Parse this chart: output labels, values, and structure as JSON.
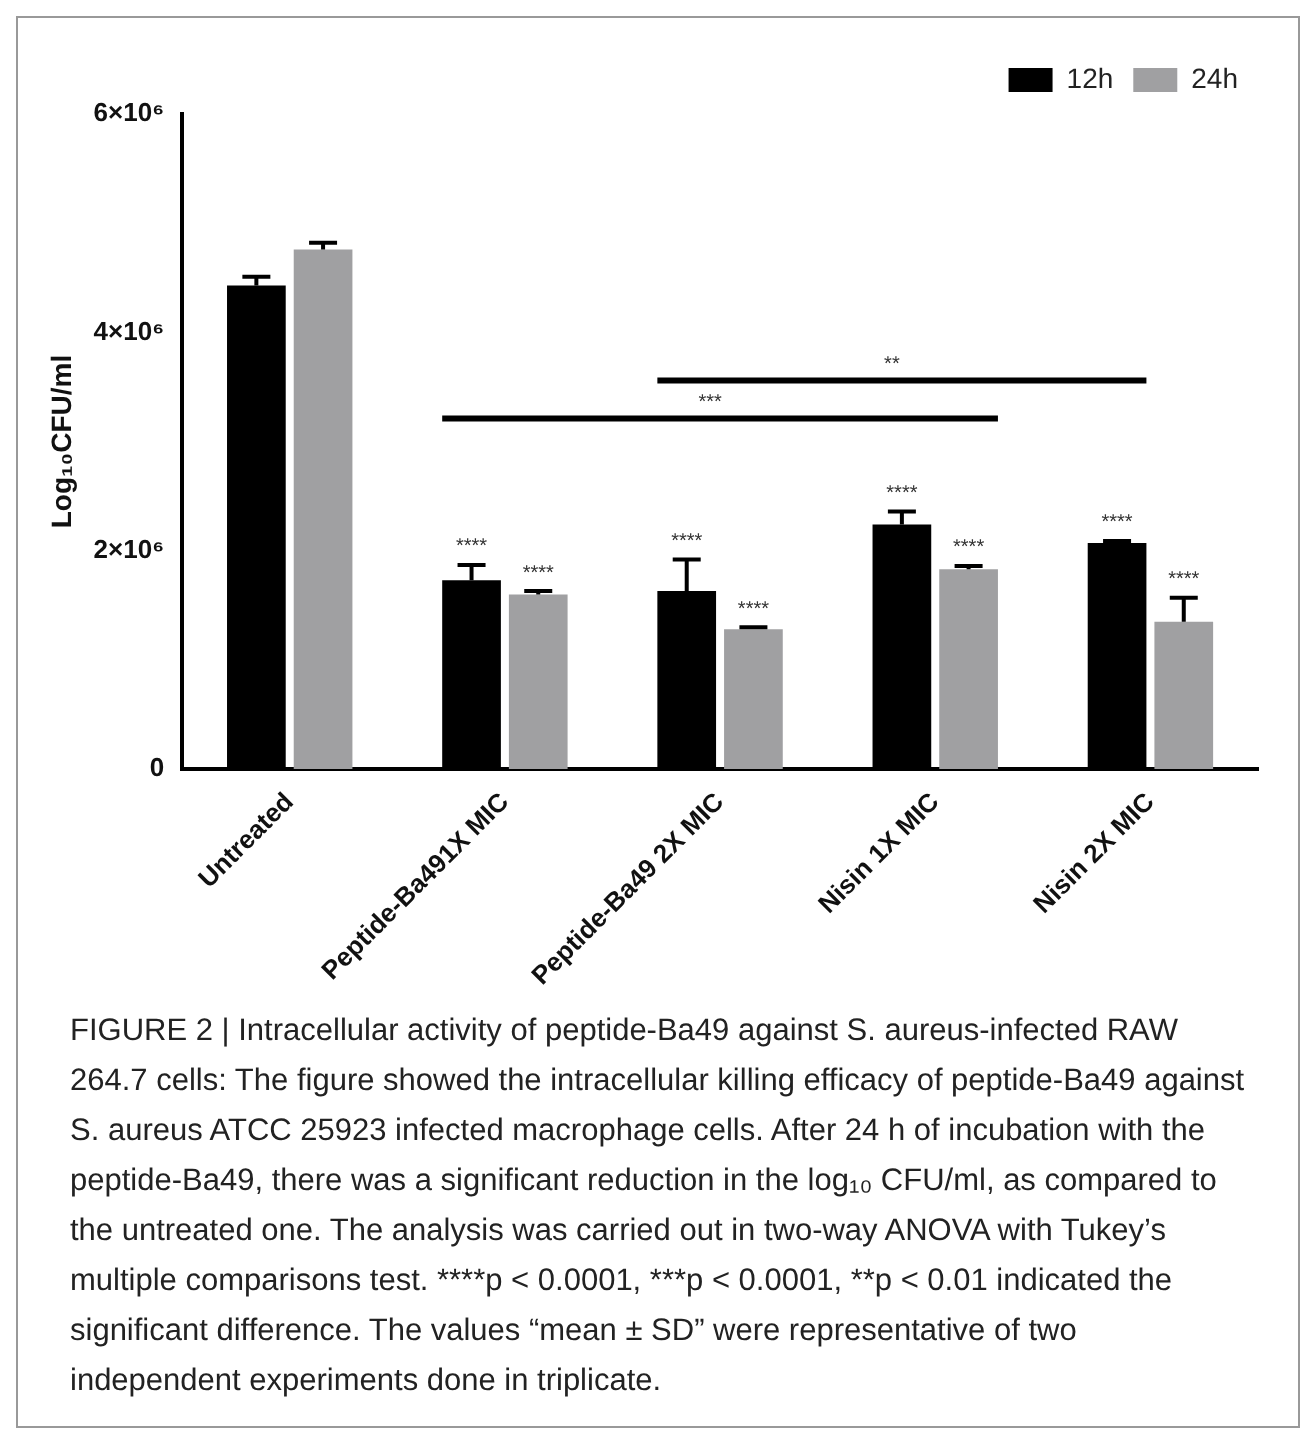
{
  "chart_data": {
    "type": "bar",
    "ylabel": "Log₁₀CFU/ml",
    "categories": [
      "Untreated",
      "Peptide-Ba491X MIC",
      "Peptide-Ba49 2X MIC",
      "Nisin 1X MIC",
      "Nisin 2X MIC"
    ],
    "series": [
      {
        "name": "12h",
        "color": "#000000",
        "values": [
          4430000,
          1730000,
          1630000,
          2240000,
          2070000
        ],
        "errors": [
          80000,
          140000,
          290000,
          120000,
          20000
        ],
        "value_labels": [
          null,
          "****",
          "****",
          "****",
          "****"
        ]
      },
      {
        "name": "24h",
        "color": "#a0a0a2",
        "values": [
          4760000,
          1600000,
          1280000,
          1830000,
          1350000
        ],
        "errors": [
          60000,
          30000,
          20000,
          30000,
          220000
        ],
        "value_labels": [
          null,
          "****",
          "****",
          "****",
          "****"
        ]
      }
    ],
    "ylim": [
      0,
      6000000
    ],
    "yticks": [
      {
        "value": 0,
        "label": "0"
      },
      {
        "value": 2000000,
        "label": "2×10⁶"
      },
      {
        "value": 4000000,
        "label": "4×10⁶"
      },
      {
        "value": 6000000,
        "label": "6×10⁶"
      }
    ],
    "grid": false,
    "legend": "top right",
    "annotations": [
      "***",
      "**",
      "FIGURE 2 | Intracellular activity of peptide-Ba49 against S. aureus-infected RAW 264.7 cells: The figure showed the intracellular killing efficacy of peptide-Ba49 against S. aureus ATCC 25923 infected macrophage cells. After 24 h of incubation with the peptide-Ba49, there was a significant reduction in the log₁₀ CFU/ml, as compared to the untreated one. The analysis was carried out in two-way ANOVA with Tukey’s multiple comparisons test. ****p < 0.0001, ***p < 0.0001, **p < 0.01 indicated the significant difference. The values “mean ± SD” were representative of two independent experiments done in triplicate."
    ]
  }
}
